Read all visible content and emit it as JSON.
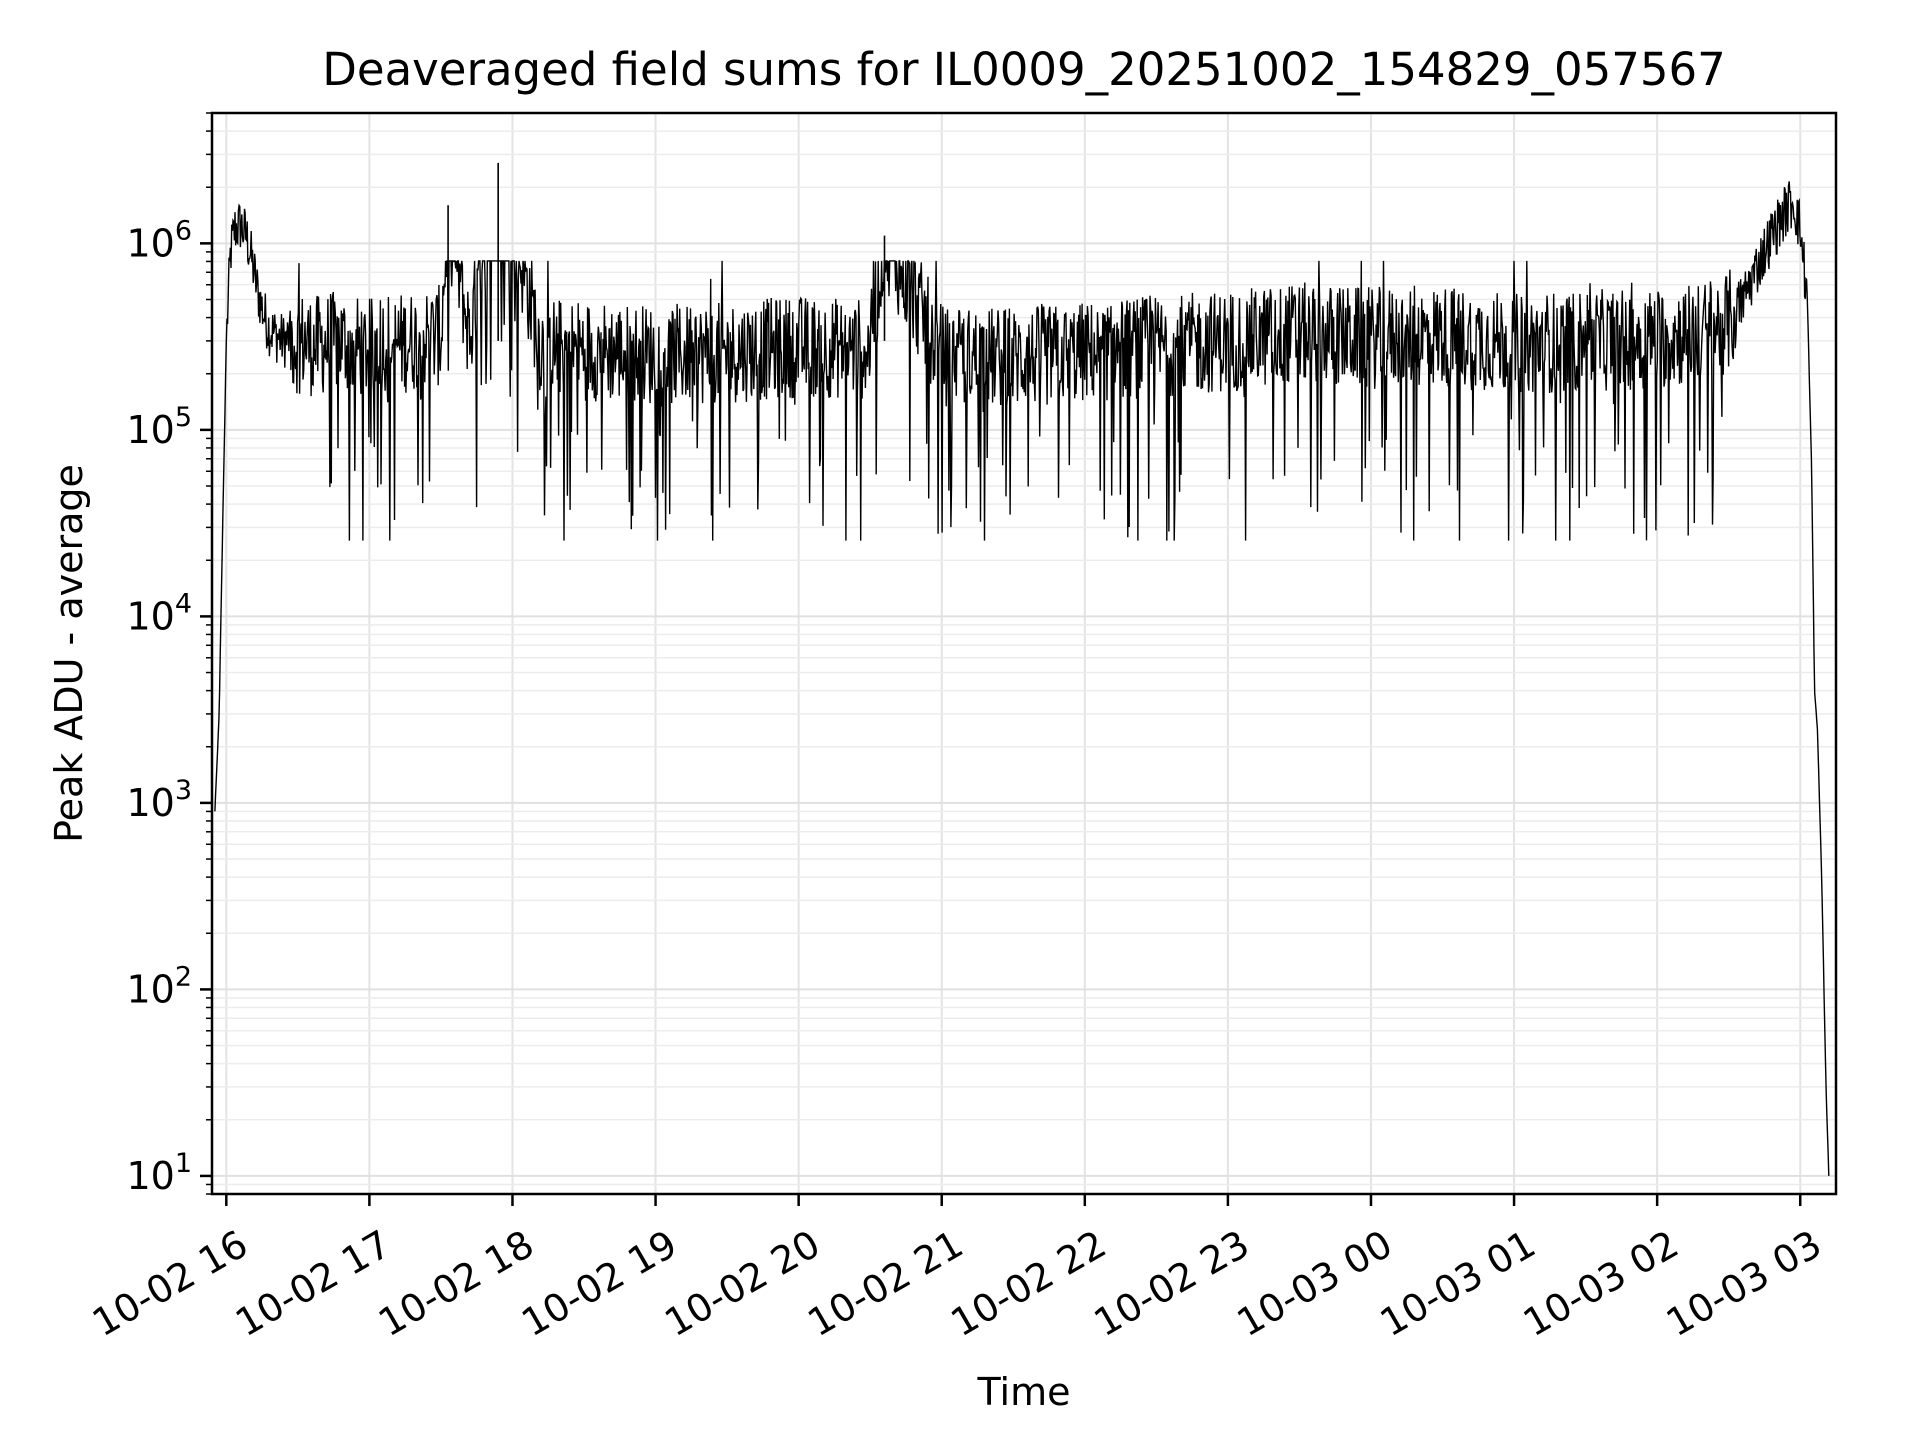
{
  "chart_data": {
    "type": "line",
    "title": "Deaveraged field sums for IL0009_20251002_154829_057567",
    "xlabel": "Time",
    "ylabel": "Peak ADU - average",
    "yscale": "log",
    "ylim": [
      8,
      5000000
    ],
    "xlim_hours": [
      15.9,
      27.25
    ],
    "grid": true,
    "line_color": "#000000",
    "x_ticks": [
      {
        "hour": 16,
        "label": "10-02 16"
      },
      {
        "hour": 17,
        "label": "10-02 17"
      },
      {
        "hour": 18,
        "label": "10-02 18"
      },
      {
        "hour": 19,
        "label": "10-02 19"
      },
      {
        "hour": 20,
        "label": "10-02 20"
      },
      {
        "hour": 21,
        "label": "10-02 21"
      },
      {
        "hour": 22,
        "label": "10-02 22"
      },
      {
        "hour": 23,
        "label": "10-02 23"
      },
      {
        "hour": 24,
        "label": "10-03 00"
      },
      {
        "hour": 25,
        "label": "10-03 01"
      },
      {
        "hour": 26,
        "label": "10-03 02"
      },
      {
        "hour": 27,
        "label": "10-03 03"
      }
    ],
    "y_ticks": [
      {
        "value": 10,
        "base": "10",
        "exp": "1"
      },
      {
        "value": 100,
        "base": "10",
        "exp": "2"
      },
      {
        "value": 1000,
        "base": "10",
        "exp": "3"
      },
      {
        "value": 10000,
        "base": "10",
        "exp": "4"
      },
      {
        "value": 100000,
        "base": "10",
        "exp": "5"
      },
      {
        "value": 1000000,
        "base": "10",
        "exp": "6"
      }
    ],
    "series": [
      {
        "name": "field sums",
        "x_hours": [
          15.92,
          15.95,
          15.97,
          16.0,
          16.03,
          16.06,
          16.1,
          16.14,
          16.18,
          16.22,
          16.26,
          16.3,
          16.35,
          16.4,
          16.45,
          16.5,
          16.55,
          16.6,
          16.7,
          16.8,
          16.9,
          17.0,
          17.1,
          17.2,
          17.3,
          17.5,
          17.55,
          17.7,
          17.9,
          18.2,
          18.5,
          19.0,
          19.5,
          20.0,
          20.5,
          20.6,
          21.0,
          21.5,
          22.0,
          22.5,
          23.0,
          23.5,
          24.0,
          24.5,
          25.0,
          25.5,
          26.0,
          26.3,
          26.5,
          26.6,
          26.7,
          26.8,
          26.9,
          26.95,
          27.0,
          27.05,
          27.08,
          27.1,
          27.12,
          27.15,
          27.18,
          27.2
        ],
        "y_values": [
          900,
          3000,
          20000,
          300000,
          900000,
          1200000,
          1250000,
          1100000,
          800000,
          550000,
          420000,
          350000,
          320000,
          300000,
          310000,
          290000,
          300000,
          280000,
          290000,
          300000,
          280000,
          270000,
          300000,
          290000,
          300000,
          320000,
          1600000,
          310000,
          2700000,
          280000,
          270000,
          250000,
          260000,
          280000,
          270000,
          1100000,
          250000,
          240000,
          260000,
          280000,
          300000,
          330000,
          310000,
          320000,
          290000,
          300000,
          310000,
          330000,
          380000,
          500000,
          750000,
          1100000,
          1500000,
          1700000,
          1200000,
          500000,
          60000,
          4000,
          2500,
          400,
          30,
          10
        ],
        "noise_band_low": 30000,
        "noise_band_high": 700000
      }
    ]
  }
}
